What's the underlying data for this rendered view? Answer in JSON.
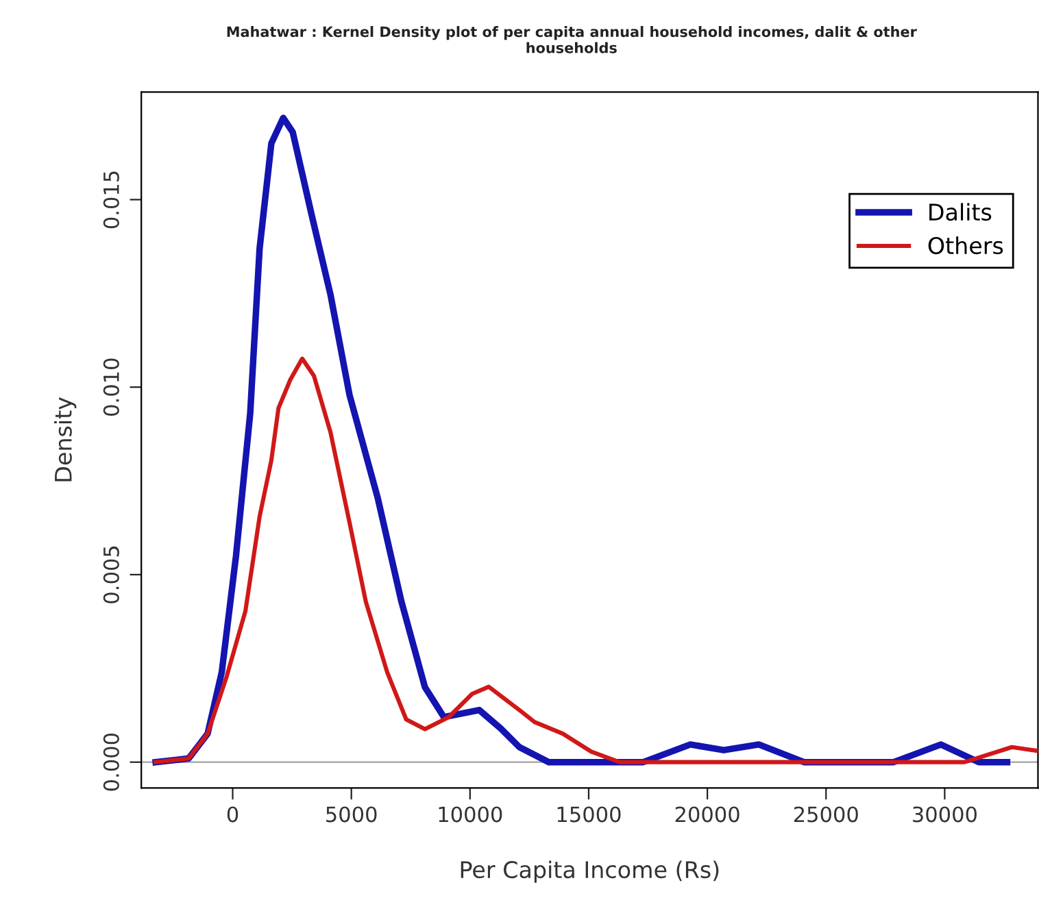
{
  "chart_data": {
    "type": "line",
    "title": "Mahatwar : Kernel Density plot of per capita annual household incomes, dalit & other\nhouseholds",
    "xlabel": "Per Capita Income (Rs)",
    "ylabel": "Density",
    "series": [
      {
        "name": "Dalits",
        "color": "#1414b0",
        "x": [
          -3245,
          -1850,
          -1055,
          -460,
          140,
          738,
          1135,
          1630,
          2130,
          2530,
          3325,
          4120,
          4920,
          6110,
          7110,
          8100,
          8900,
          10390,
          11290,
          12080,
          13320,
          17300,
          19285,
          20690,
          22170,
          24070,
          27850,
          29845,
          31440,
          32630
        ],
        "values": [
          0,
          0.0001,
          0.00076,
          0.0024,
          0.0055,
          0.0093,
          0.0137,
          0.0165,
          0.01718,
          0.0168,
          0.0146,
          0.01247,
          0.0098,
          0.00705,
          0.00428,
          0.002,
          0.0012,
          0.00139,
          0.0009,
          0.0004,
          0,
          0,
          0.00047,
          0.00032,
          0.00047,
          0,
          0,
          0.00047,
          0,
          0
        ]
      },
      {
        "name": "Others",
        "color": "#d01818",
        "x": [
          -3245,
          -1850,
          -1055,
          -260,
          537,
          1135,
          1630,
          1930,
          2430,
          2930,
          3425,
          4120,
          4920,
          5610,
          6510,
          7310,
          8100,
          9100,
          10090,
          10790,
          12080,
          12720,
          13910,
          15110,
          16300,
          30840,
          32830,
          33930
        ],
        "values": [
          0,
          0.0001,
          0.00076,
          0.00227,
          0.00403,
          0.00655,
          0.00805,
          0.00944,
          0.0102,
          0.01076,
          0.0103,
          0.0088,
          0.0064,
          0.00428,
          0.0024,
          0.00114,
          0.00088,
          0.0012,
          0.00182,
          0.00201,
          0.00139,
          0.00107,
          0.00076,
          0.00028,
          0,
          0,
          0.0004,
          0.0003
        ]
      }
    ],
    "xlim": [
      -3850,
      33930
    ],
    "ylim": [
      -0.00069,
      0.01787
    ],
    "xticks": [
      0,
      5000,
      10000,
      15000,
      20000,
      25000,
      30000
    ],
    "yticks": [
      {
        "value": 0,
        "label": "0.000"
      },
      {
        "value": 0.005,
        "label": "0.005"
      },
      {
        "value": 0.01,
        "label": "0.010"
      },
      {
        "value": 0.015,
        "label": "0.015"
      }
    ],
    "ref_lines": [
      {
        "axis": "y",
        "value": 0,
        "color": "#b0b0b0",
        "line_style": "solid"
      }
    ],
    "legend": "top right",
    "grid": false,
    "marker": "none",
    "line_style": "solid"
  }
}
